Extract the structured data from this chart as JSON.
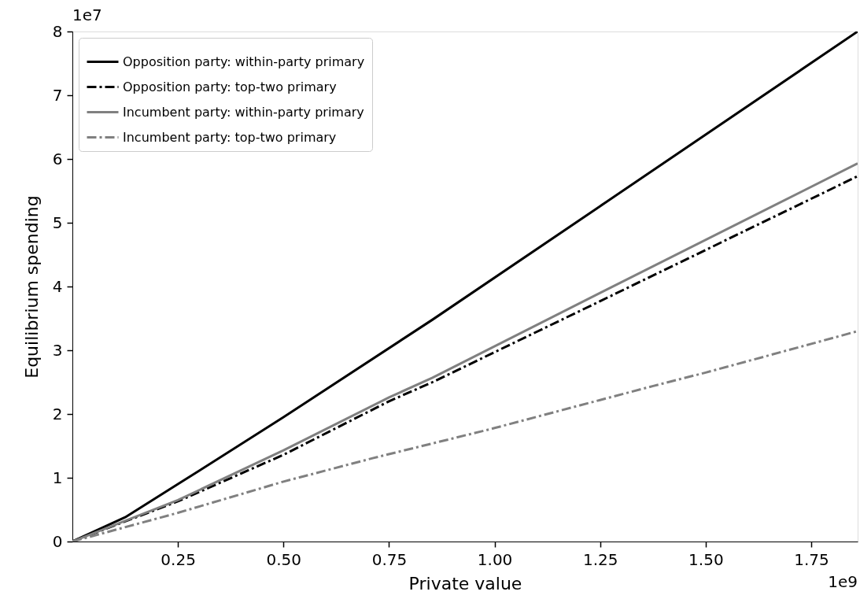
{
  "chart_data": {
    "type": "line",
    "xlabel": "Private value",
    "ylabel": "Equilibrium spending",
    "annotations": [
      "1e7",
      "1e9"
    ],
    "xlim": [
      0,
      1.86
    ],
    "ylim": [
      0,
      8
    ],
    "xticks": [
      0.25,
      {
        "value": 0.5,
        "label": "0.50"
      },
      0.75,
      {
        "value": 1,
        "label": "1.00"
      },
      1.25,
      {
        "value": 1.5,
        "label": "1.50"
      },
      1.75
    ],
    "yticks": [
      0,
      1,
      2,
      3,
      4,
      5,
      6,
      7,
      8
    ],
    "grid": false,
    "legend": "top left",
    "marker": "none",
    "series": [
      {
        "name": "Opposition party: within-party primary",
        "color": "#000000",
        "line_style": "solid",
        "x": [
          0,
          0.125,
          0.25,
          0.5,
          0.853,
          1.25,
          1.86
        ],
        "values": [
          0,
          0.38,
          0.9,
          1.95,
          3.48,
          5.26,
          8.0
        ]
      },
      {
        "name": "Opposition party: top-two primary",
        "color": "#000000",
        "line_style": "dashdot",
        "x": [
          0,
          0.25,
          0.5,
          0.75,
          0.853,
          1.25,
          1.86
        ],
        "values": [
          0,
          0.63,
          1.36,
          2.2,
          2.5,
          3.77,
          5.73
        ]
      },
      {
        "name": "Incumbent party: within-party primary",
        "color": "#808080",
        "line_style": "solid",
        "x": [
          0,
          0.25,
          0.5,
          0.75,
          0.853,
          1.25,
          1.86
        ],
        "values": [
          0,
          0.65,
          1.43,
          2.26,
          2.57,
          3.9,
          5.93
        ]
      },
      {
        "name": "Incumbent party: top-two primary",
        "color": "#808080",
        "line_style": "dashdot",
        "x": [
          0,
          0.25,
          0.5,
          0.713,
          0.97,
          1.0,
          1.25,
          1.376,
          1.5,
          1.75,
          1.86
        ],
        "values": [
          0,
          0.45,
          0.94,
          1.31,
          1.73,
          1.78,
          2.22,
          2.44,
          2.65,
          3.1,
          3.3
        ]
      }
    ]
  }
}
